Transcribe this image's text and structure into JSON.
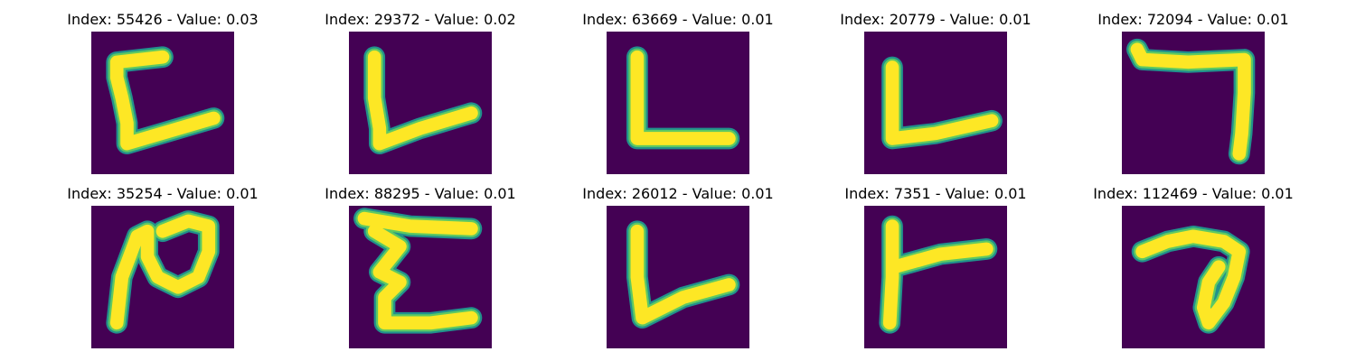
{
  "colors": {
    "background": "#440154",
    "stroke_outer": "#21918c",
    "stroke_mid": "#5ec962",
    "stroke_core": "#fde725"
  },
  "panels": [
    {
      "title": "Index: 55426 - Value: 0.03"
    },
    {
      "title": "Index: 29372 - Value: 0.02"
    },
    {
      "title": "Index: 63669 - Value: 0.01"
    },
    {
      "title": "Index: 20779 - Value: 0.01"
    },
    {
      "title": "Index: 72094 - Value: 0.01"
    },
    {
      "title": "Index: 35254 - Value: 0.01"
    },
    {
      "title": "Index: 88295 - Value: 0.01"
    },
    {
      "title": "Index: 26012 - Value: 0.01"
    },
    {
      "title": "Index: 7351 - Value: 0.01"
    },
    {
      "title": "Index: 112469 - Value: 0.01"
    }
  ]
}
